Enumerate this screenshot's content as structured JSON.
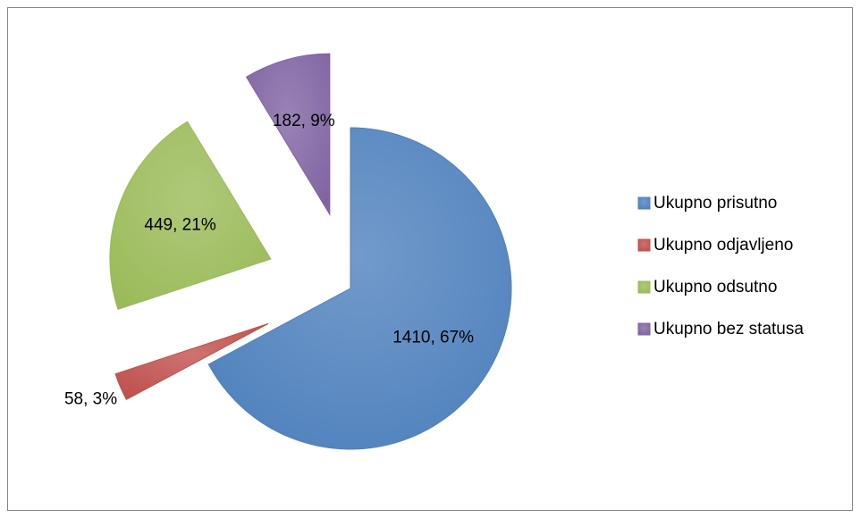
{
  "chart_data": {
    "type": "pie",
    "categories": [
      "Ukupno prisutno",
      "Ukupno odjavljeno",
      "Ukupno odsutno",
      "Ukupno bez statusa"
    ],
    "values": [
      1410,
      58,
      449,
      182
    ],
    "value_labels": [
      "1410, 67%",
      "58, 3%",
      "449, 21%",
      "182, 9%"
    ],
    "colors": [
      "#4f81bd",
      "#c0504d",
      "#9bbb59",
      "#8064a2"
    ],
    "legend": "right"
  }
}
